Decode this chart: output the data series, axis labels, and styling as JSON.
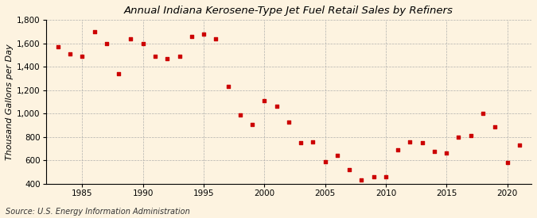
{
  "title": "Annual Indiana Kerosene-Type Jet Fuel Retail Sales by Refiners",
  "ylabel": "Thousand Gallons per Day",
  "source": "Source: U.S. Energy Information Administration",
  "background_color": "#fdf3e0",
  "plot_bg_color": "#fdf3e0",
  "marker_color": "#cc0000",
  "years": [
    1983,
    1984,
    1985,
    1986,
    1987,
    1988,
    1989,
    1990,
    1991,
    1992,
    1993,
    1994,
    1995,
    1996,
    1997,
    1998,
    1999,
    2000,
    2001,
    2002,
    2003,
    2004,
    2005,
    2006,
    2007,
    2008,
    2009,
    2010,
    2011,
    2012,
    2013,
    2014,
    2015,
    2016,
    2017,
    2018,
    2019,
    2020,
    2021
  ],
  "values": [
    1570,
    1510,
    1490,
    1700,
    1600,
    1340,
    1640,
    1600,
    1490,
    1470,
    1490,
    1660,
    1680,
    1640,
    1230,
    990,
    910,
    1110,
    1060,
    930,
    750,
    760,
    590,
    640,
    520,
    430,
    460,
    460,
    690,
    760,
    750,
    680,
    660,
    800,
    810,
    1000,
    890,
    580,
    730
  ],
  "ylim": [
    400,
    1800
  ],
  "yticks": [
    400,
    600,
    800,
    1000,
    1200,
    1400,
    1600,
    1800
  ],
  "xlim": [
    1982,
    2022
  ],
  "xticks": [
    1985,
    1990,
    1995,
    2000,
    2005,
    2010,
    2015,
    2020
  ],
  "grid_color": "#aaaaaa",
  "title_fontsize": 9.5,
  "ylabel_fontsize": 8,
  "tick_fontsize": 7.5,
  "source_fontsize": 7
}
